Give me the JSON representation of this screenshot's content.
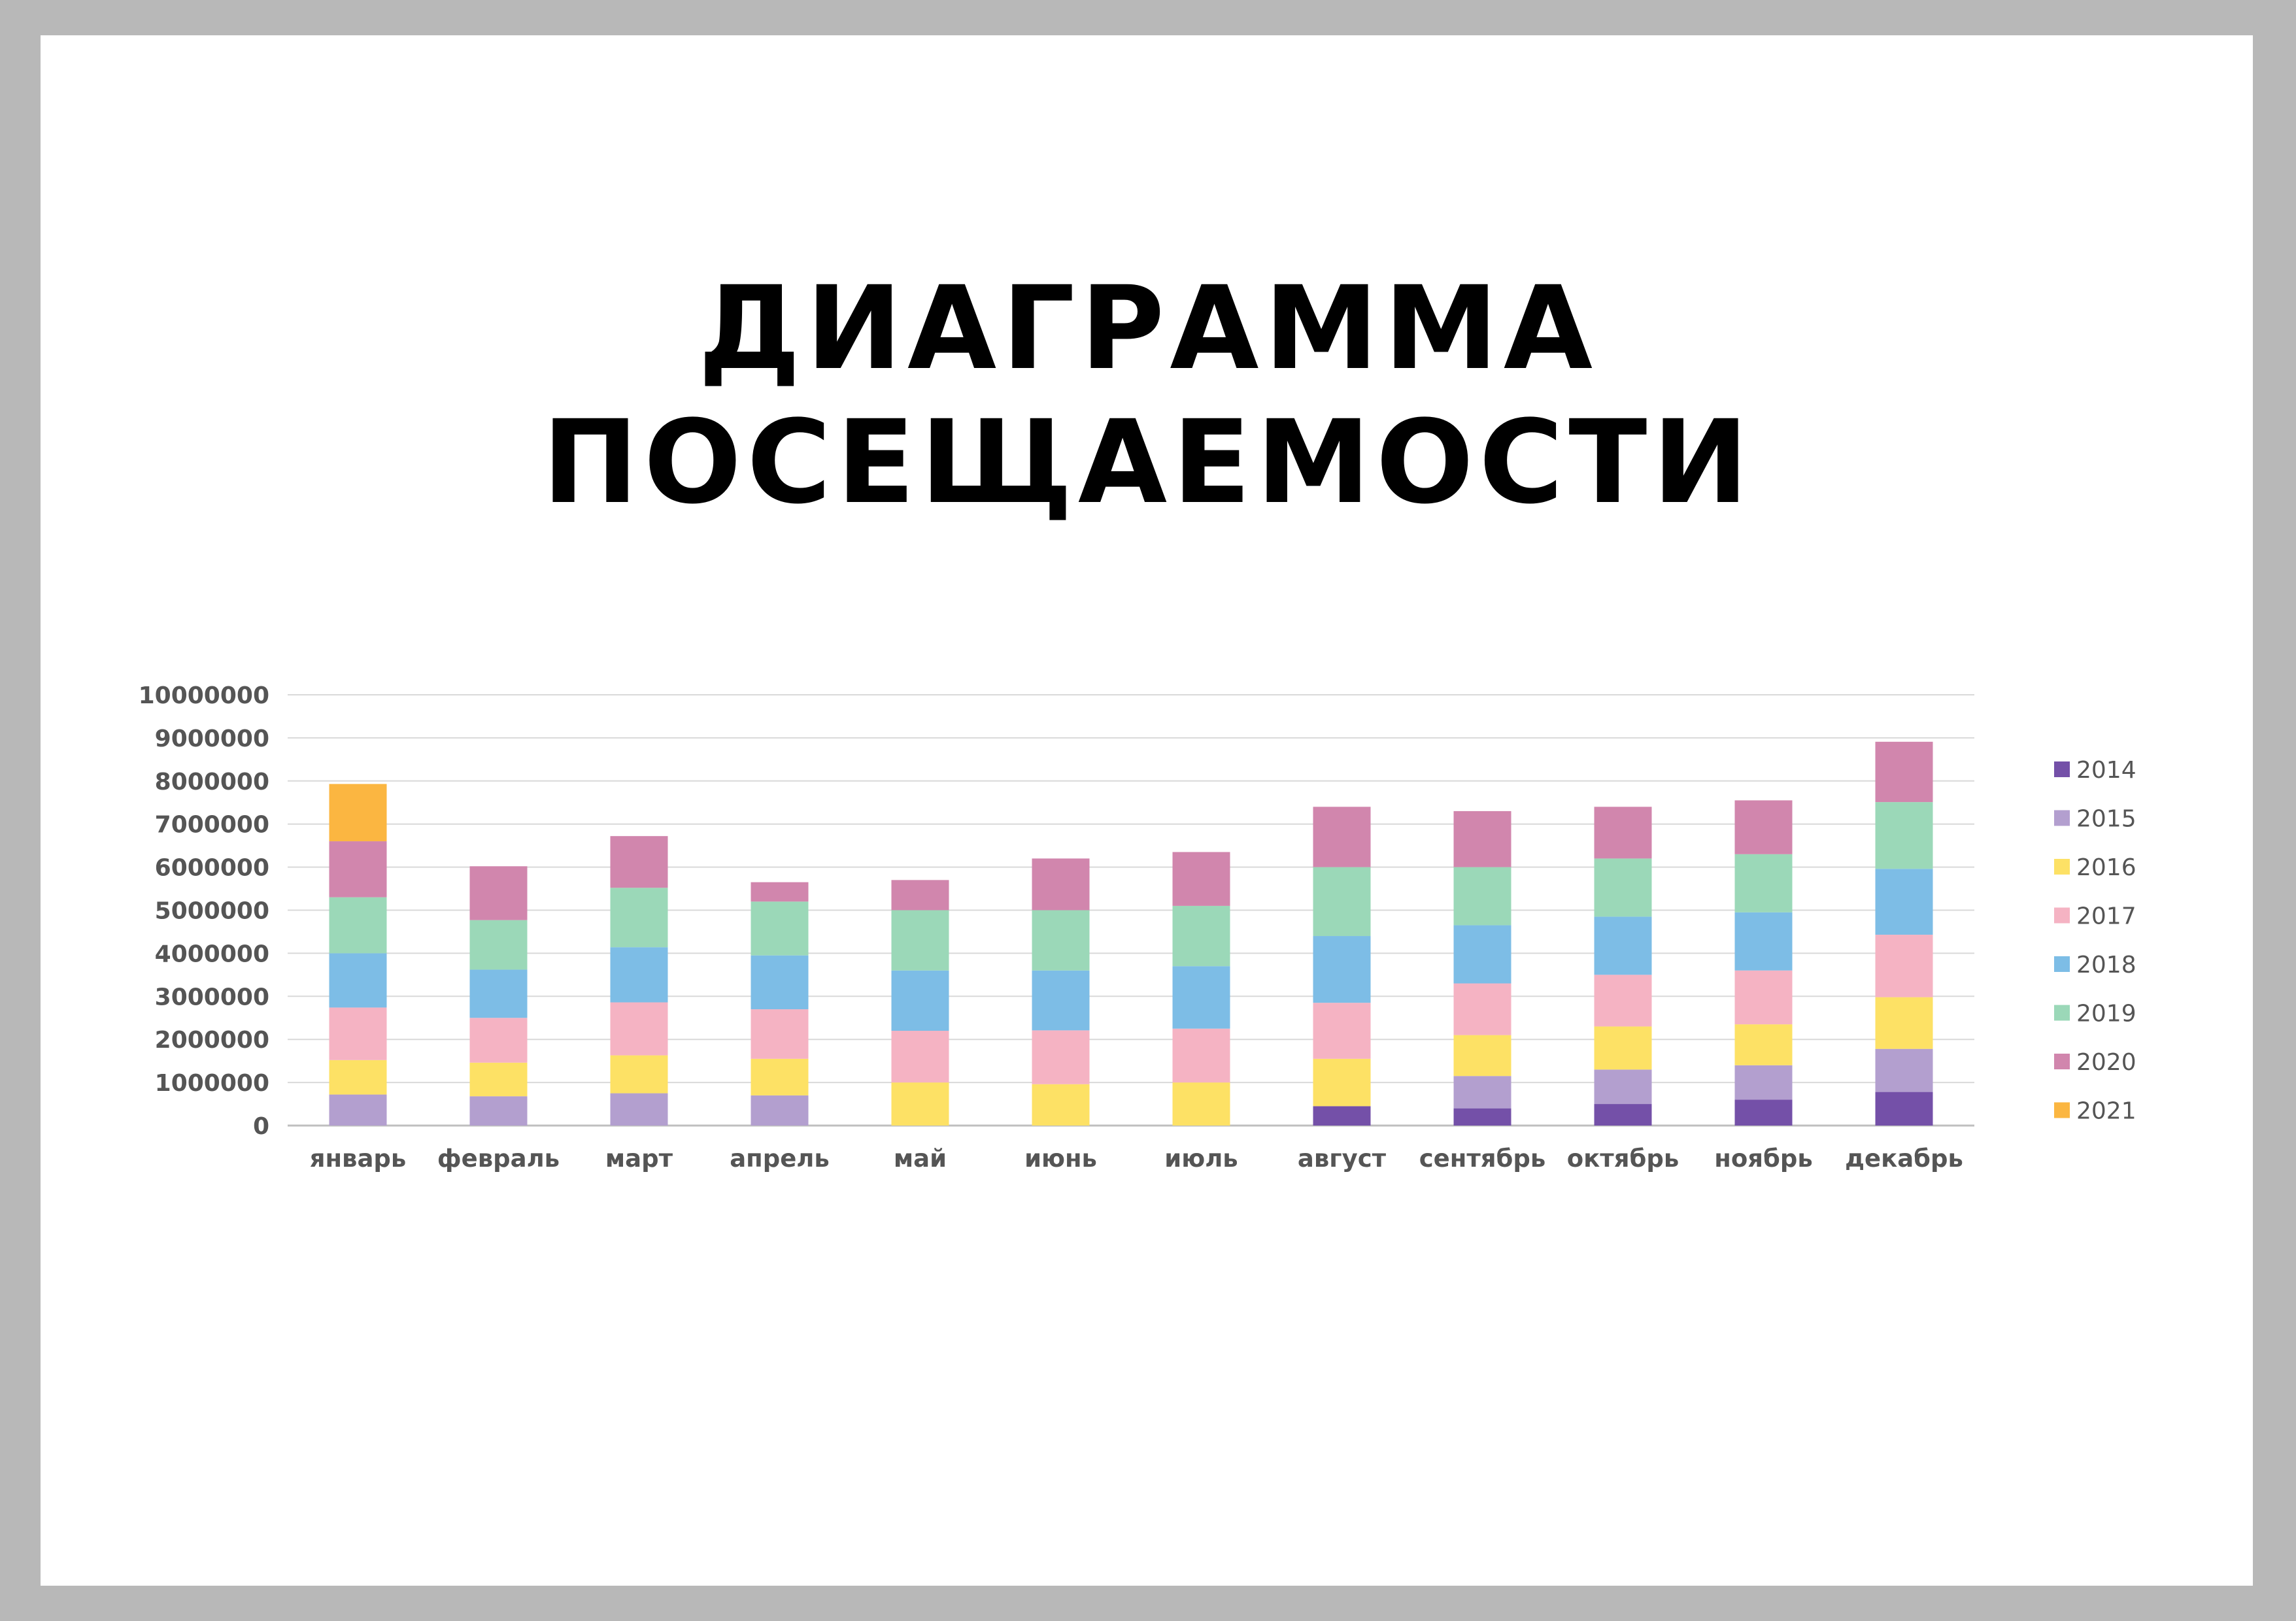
{
  "page": {
    "title_lines": [
      "ДИАГРАММА",
      "ПОСЕЩАЕМОСТИ"
    ]
  },
  "chart_data": {
    "type": "bar",
    "stacked": true,
    "title": "",
    "xlabel": "",
    "ylabel": "",
    "ylim": [
      0,
      10000000
    ],
    "yticks": [
      "0",
      "1000000",
      "2000000",
      "3000000",
      "4000000",
      "5000000",
      "6000000",
      "7000000",
      "8000000",
      "9000000",
      "10000000"
    ],
    "grid": true,
    "legend_position": "right",
    "categories": [
      "январь",
      "февраль",
      "март",
      "апрель",
      "май",
      "июнь",
      "июль",
      "август",
      "сентябрь",
      "октябрь",
      "ноябрь",
      "декабрь"
    ],
    "series": [
      {
        "name": "2014",
        "color": "#7450a8",
        "values": [
          0,
          0,
          0,
          0,
          0,
          0,
          0,
          450000,
          400000,
          500000,
          600000,
          780000
        ]
      },
      {
        "name": "2015",
        "color": "#b39fcf",
        "values": [
          720000,
          680000,
          750000,
          700000,
          0,
          0,
          0,
          0,
          750000,
          800000,
          800000,
          1000000
        ]
      },
      {
        "name": "2016",
        "color": "#fde165",
        "values": [
          800000,
          780000,
          880000,
          850000,
          1000000,
          960000,
          1000000,
          1100000,
          950000,
          1000000,
          950000,
          1200000
        ]
      },
      {
        "name": "2017",
        "color": "#f5b3c3",
        "values": [
          1220000,
          1040000,
          1230000,
          1150000,
          1200000,
          1250000,
          1250000,
          1300000,
          1200000,
          1200000,
          1250000,
          1450000
        ]
      },
      {
        "name": "2018",
        "color": "#7dbde6",
        "values": [
          1260000,
          1120000,
          1280000,
          1250000,
          1400000,
          1390000,
          1450000,
          1550000,
          1350000,
          1350000,
          1350000,
          1530000
        ]
      },
      {
        "name": "2019",
        "color": "#9bd8b8",
        "values": [
          1300000,
          1150000,
          1380000,
          1250000,
          1400000,
          1400000,
          1400000,
          1600000,
          1350000,
          1350000,
          1350000,
          1550000
        ]
      },
      {
        "name": "2020",
        "color": "#d186ad",
        "values": [
          1300000,
          1250000,
          1200000,
          450000,
          700000,
          1200000,
          1250000,
          1400000,
          1300000,
          1200000,
          1250000,
          1400000
        ]
      },
      {
        "name": "2021",
        "color": "#fbb641",
        "values": [
          1330000,
          0,
          0,
          0,
          0,
          0,
          0,
          0,
          0,
          0,
          0,
          0
        ]
      }
    ]
  }
}
